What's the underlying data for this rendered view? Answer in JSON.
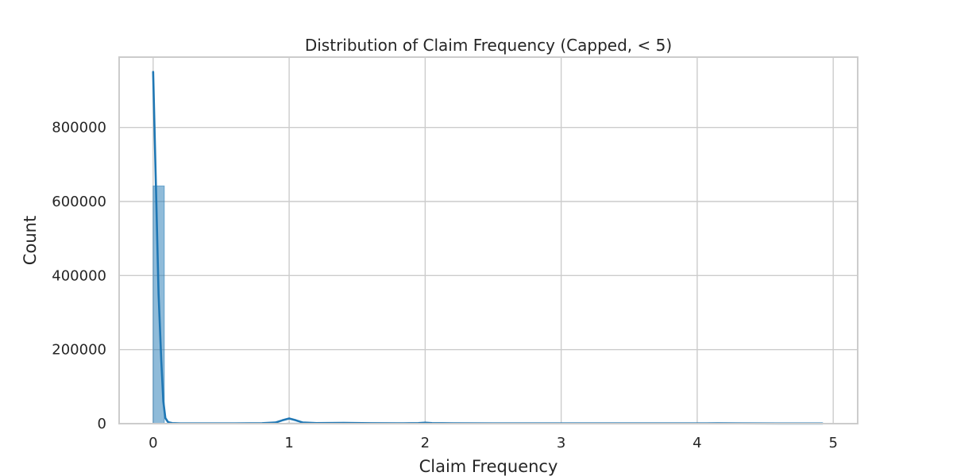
{
  "chart_data": {
    "type": "bar",
    "title": "Distribution of Claim Frequency (Capped, < 5)",
    "xlabel": "Claim Frequency",
    "ylabel": "Count",
    "xlim": [
      -0.25,
      5.18
    ],
    "ylim": [
      0,
      990000
    ],
    "xticks": [
      0,
      1,
      2,
      3,
      4,
      5
    ],
    "yticks": [
      0,
      200000,
      400000,
      600000,
      800000
    ],
    "grid": true,
    "histogram": {
      "bins": [
        {
          "x0": 0.0,
          "x1": 0.082,
          "count": 642000
        },
        {
          "x0": 0.984,
          "x1": 1.066,
          "count": 1500
        },
        {
          "x0": 1.984,
          "x1": 2.066,
          "count": 500
        },
        {
          "x0": 4.13,
          "x1": 4.21,
          "count": 200
        }
      ],
      "color": "#1f77b4"
    },
    "kde": {
      "color": "#1f77b4",
      "points": [
        [
          0.0,
          950000
        ],
        [
          0.02,
          650000
        ],
        [
          0.04,
          350000
        ],
        [
          0.06,
          170000
        ],
        [
          0.075,
          60000
        ],
        [
          0.09,
          15000
        ],
        [
          0.11,
          4000
        ],
        [
          0.14,
          1500
        ],
        [
          0.2,
          800
        ],
        [
          0.4,
          600
        ],
        [
          0.6,
          700
        ],
        [
          0.8,
          1200
        ],
        [
          0.9,
          3000
        ],
        [
          0.95,
          9000
        ],
        [
          1.0,
          14000
        ],
        [
          1.05,
          9000
        ],
        [
          1.1,
          3000
        ],
        [
          1.2,
          1500
        ],
        [
          1.4,
          2000
        ],
        [
          1.6,
          1200
        ],
        [
          1.8,
          900
        ],
        [
          1.95,
          1500
        ],
        [
          2.0,
          2500
        ],
        [
          2.05,
          1500
        ],
        [
          2.2,
          900
        ],
        [
          2.5,
          800
        ],
        [
          3.0,
          700
        ],
        [
          3.5,
          600
        ],
        [
          4.0,
          600
        ],
        [
          4.15,
          900
        ],
        [
          4.3,
          600
        ],
        [
          4.6,
          400
        ],
        [
          4.92,
          300
        ]
      ]
    }
  }
}
